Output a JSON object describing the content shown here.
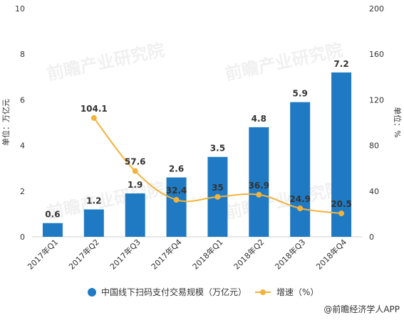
{
  "chart_data": {
    "type": "bar",
    "categories": [
      "2017年Q1",
      "2017年Q2",
      "2017年Q3",
      "2017年Q4",
      "2018年Q1",
      "2018年Q2",
      "2018年Q3",
      "2018年Q4"
    ],
    "series": [
      {
        "name": "中国线下扫码支付交易规模（万亿元）",
        "type": "bar",
        "axis": "left",
        "values": [
          0.6,
          1.2,
          1.9,
          2.6,
          3.5,
          4.8,
          5.9,
          7.2
        ],
        "labels": [
          "0.6",
          "1.2",
          "1.9",
          "2.6",
          "3.5",
          "4.8",
          "5.9",
          "7.2"
        ]
      },
      {
        "name": "增速（%）",
        "type": "line",
        "axis": "right",
        "values": [
          null,
          104.1,
          57.6,
          32.4,
          35,
          36.9,
          24.9,
          20.5
        ],
        "labels": [
          null,
          "104.1",
          "57.6",
          "32.4",
          "35",
          "36.9",
          "24.9",
          "20.5"
        ]
      }
    ],
    "ylabel": "单位：万亿元",
    "y2label": "单位：%",
    "ylim": [
      0,
      10
    ],
    "y2lim": [
      0,
      200
    ],
    "yticks": [
      0,
      2,
      4,
      6,
      8,
      10
    ],
    "y2ticks": [
      0,
      40,
      80,
      120,
      160,
      200
    ],
    "grid": false,
    "legend_position": "bottom",
    "colors": {
      "bar": "#1f7ac3",
      "line": "#f2b33d",
      "axis": "#cfcfcf",
      "text": "#333333"
    }
  },
  "source": "@前瞻经济学人APP",
  "watermark": "前瞻产业研究院"
}
